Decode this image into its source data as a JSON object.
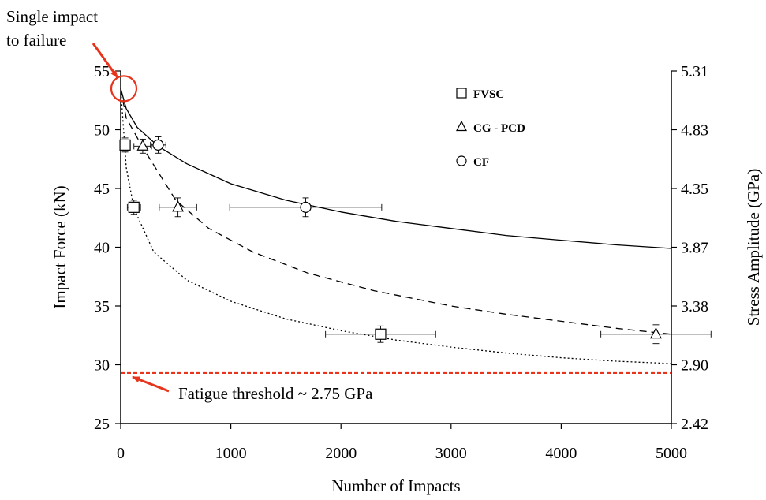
{
  "chart_data": {
    "type": "scatter",
    "x_axis": {
      "label": "Number of Impacts",
      "range": [
        0,
        5000
      ],
      "ticks": [
        0,
        1000,
        2000,
        3000,
        4000,
        5000
      ],
      "tick_labels": [
        "0",
        "1000",
        "2000",
        "3000",
        "4000",
        "5000"
      ]
    },
    "y_axis_left": {
      "label": "Impact Force (kN)",
      "range": [
        25,
        55
      ],
      "ticks": [
        25,
        30,
        35,
        40,
        45,
        50,
        55
      ],
      "tick_labels": [
        "25",
        "30",
        "35",
        "40",
        "45",
        "50",
        "55"
      ]
    },
    "y_axis_right": {
      "label": "Stress Amplitude (GPa)",
      "range": [
        2.42,
        5.31
      ],
      "ticks": [
        2.42,
        2.9,
        3.38,
        3.87,
        4.35,
        4.83,
        5.31
      ],
      "tick_labels": [
        "2.42",
        "2.90",
        "3.38",
        "3.87",
        "4.35",
        "4.83",
        "5.31"
      ]
    },
    "series": [
      {
        "name": "FVSC",
        "marker": "square",
        "line_style": "dotted",
        "points": [
          {
            "x": 40,
            "y": 48.7,
            "x_err": 40,
            "y_err": 0.6
          },
          {
            "x": 120,
            "y": 43.4,
            "x_err": 60,
            "y_err": 0.6
          },
          {
            "x": 2360,
            "y": 32.6,
            "x_err": 500,
            "y_err": 0.7
          }
        ],
        "fit_curve": [
          [
            0,
            53.5
          ],
          [
            50,
            46.8
          ],
          [
            120,
            43.3
          ],
          [
            300,
            39.6
          ],
          [
            600,
            37.2
          ],
          [
            1000,
            35.4
          ],
          [
            1500,
            33.9
          ],
          [
            2000,
            32.9
          ],
          [
            2500,
            32.1
          ],
          [
            3000,
            31.5
          ],
          [
            3500,
            31.0
          ],
          [
            4000,
            30.6
          ],
          [
            4500,
            30.3
          ],
          [
            5000,
            30.1
          ]
        ]
      },
      {
        "name": "CG - PCD",
        "marker": "triangle",
        "line_style": "dashed",
        "points": [
          {
            "x": 200,
            "y": 48.6,
            "x_err": 80,
            "y_err": 0.6
          },
          {
            "x": 520,
            "y": 43.4,
            "x_err": 170,
            "y_err": 0.8
          },
          {
            "x": 4860,
            "y": 32.6,
            "x_err": 500,
            "y_err": 0.8
          }
        ],
        "fit_curve": [
          [
            0,
            53.5
          ],
          [
            50,
            51.0
          ],
          [
            200,
            48.5
          ],
          [
            500,
            44.0
          ],
          [
            800,
            41.6
          ],
          [
            1200,
            39.6
          ],
          [
            1700,
            37.8
          ],
          [
            2300,
            36.3
          ],
          [
            3000,
            35.0
          ],
          [
            3500,
            34.3
          ],
          [
            4000,
            33.7
          ],
          [
            4500,
            33.1
          ],
          [
            5000,
            32.6
          ]
        ]
      },
      {
        "name": "CF",
        "marker": "circle",
        "line_style": "solid",
        "points": [
          {
            "x": 340,
            "y": 48.7,
            "x_err": 70,
            "y_err": 0.7
          },
          {
            "x": 1680,
            "y": 43.4,
            "x_err": 690,
            "y_err": 0.8
          }
        ],
        "fit_curve": [
          [
            0,
            53.5
          ],
          [
            50,
            51.8
          ],
          [
            150,
            50.2
          ],
          [
            340,
            48.6
          ],
          [
            600,
            47.1
          ],
          [
            1000,
            45.4
          ],
          [
            1500,
            44.0
          ],
          [
            2000,
            43.0
          ],
          [
            2500,
            42.2
          ],
          [
            3000,
            41.6
          ],
          [
            3500,
            41.0
          ],
          [
            4000,
            40.6
          ],
          [
            4500,
            40.2
          ],
          [
            5000,
            39.9
          ]
        ]
      }
    ],
    "threshold": {
      "y": 29.3,
      "color": "#e8341c",
      "label": "Fatigue threshold ~ 2.75 GPa"
    },
    "annotations": {
      "single_impact_text": [
        "Single impact",
        "to failure"
      ],
      "single_impact_point": {
        "x": 0,
        "y": 53.5
      },
      "highlight_color": "#e8341c"
    },
    "legend": {
      "placement": "top-center",
      "entries": [
        {
          "name": "FVSC",
          "marker": "square"
        },
        {
          "name": "CG - PCD",
          "marker": "triangle"
        },
        {
          "name": "CF",
          "marker": "circle"
        }
      ]
    },
    "grid": false
  }
}
